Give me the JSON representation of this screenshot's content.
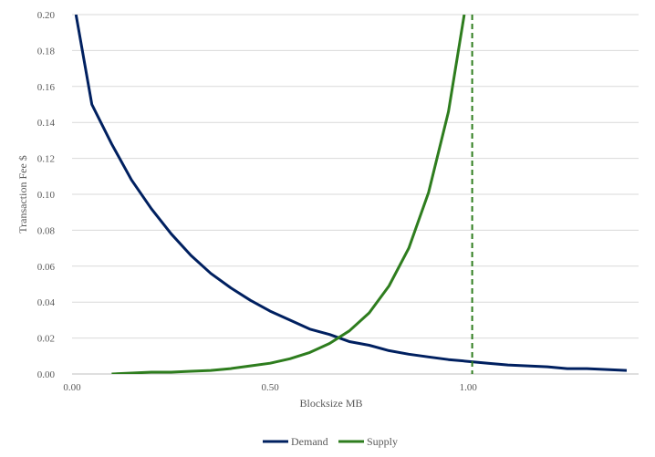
{
  "chart_data": {
    "type": "line",
    "title": "",
    "xlabel": "Blocksize MB",
    "ylabel": "Transaction Fee $",
    "xlim": [
      0,
      1.43
    ],
    "ylim": [
      0,
      0.2
    ],
    "x_ticks": [
      "0.00",
      "0.50",
      "1.00"
    ],
    "x_tick_values": [
      0,
      0.5,
      1.0
    ],
    "y_ticks": [
      "0.00",
      "0.02",
      "0.04",
      "0.06",
      "0.08",
      "0.10",
      "0.12",
      "0.14",
      "0.16",
      "0.18",
      "0.20"
    ],
    "y_tick_values": [
      0,
      0.02,
      0.04,
      0.06,
      0.08,
      0.1,
      0.12,
      0.14,
      0.16,
      0.18,
      0.2
    ],
    "grid": "horizontal",
    "legend_position": "bottom",
    "series": [
      {
        "name": "Demand",
        "color": "#002060",
        "x": [
          0.01,
          0.05,
          0.1,
          0.15,
          0.2,
          0.25,
          0.3,
          0.35,
          0.4,
          0.45,
          0.5,
          0.55,
          0.6,
          0.65,
          0.7,
          0.75,
          0.8,
          0.85,
          0.9,
          0.95,
          1.0,
          1.05,
          1.1,
          1.15,
          1.2,
          1.25,
          1.3,
          1.35,
          1.4
        ],
        "y": [
          0.2,
          0.15,
          0.128,
          0.108,
          0.092,
          0.078,
          0.066,
          0.056,
          0.048,
          0.041,
          0.035,
          0.03,
          0.025,
          0.022,
          0.018,
          0.016,
          0.013,
          0.011,
          0.0095,
          0.008,
          0.007,
          0.006,
          0.005,
          0.0045,
          0.004,
          0.003,
          0.003,
          0.0025,
          0.002
        ]
      },
      {
        "name": "Supply",
        "color": "#2E7D1E",
        "x": [
          0.1,
          0.15,
          0.2,
          0.25,
          0.3,
          0.35,
          0.4,
          0.45,
          0.5,
          0.55,
          0.6,
          0.65,
          0.7,
          0.75,
          0.8,
          0.85,
          0.9,
          0.95,
          0.99
        ],
        "y": [
          0.0,
          0.0005,
          0.001,
          0.001,
          0.0015,
          0.002,
          0.003,
          0.0045,
          0.006,
          0.0085,
          0.012,
          0.017,
          0.024,
          0.034,
          0.049,
          0.07,
          0.101,
          0.146,
          0.2
        ]
      }
    ],
    "capacity_line": {
      "x": 1.01,
      "color": "#2E7D1E",
      "style": "dashed"
    }
  }
}
